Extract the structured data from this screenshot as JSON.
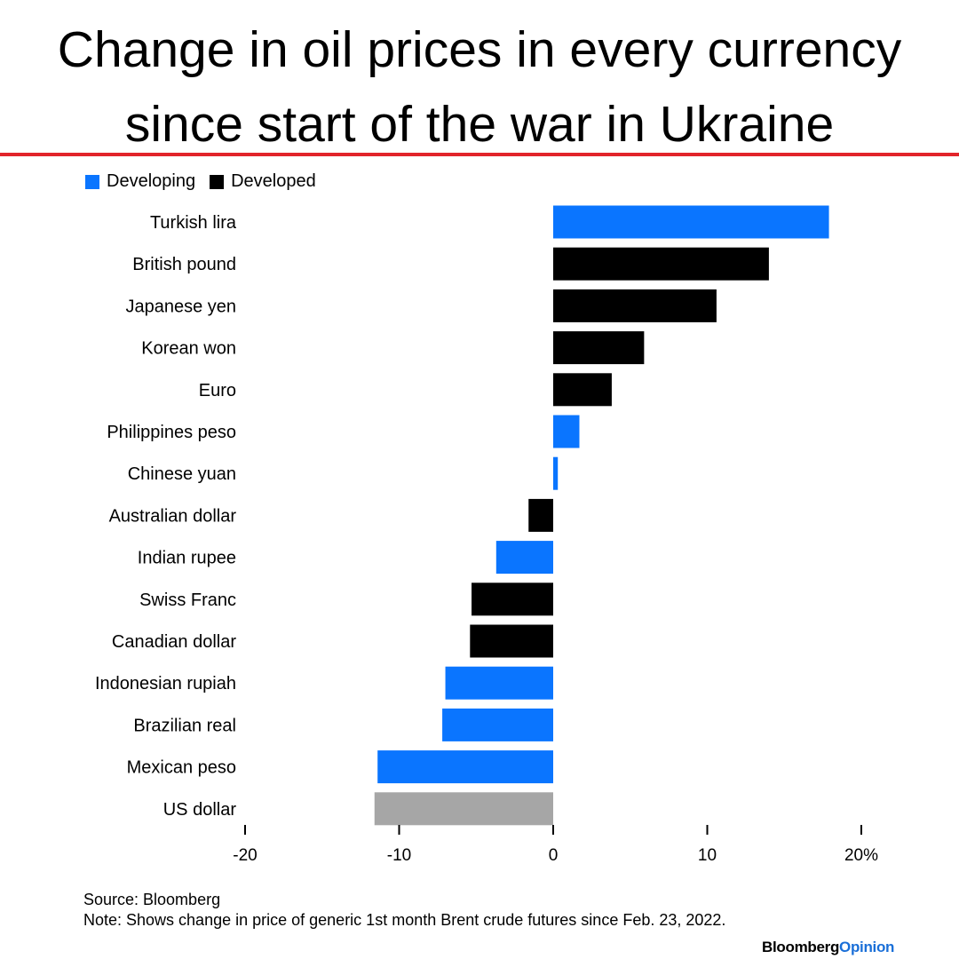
{
  "title_lines": [
    "Change in oil prices in every currency",
    "since start of the war in Ukraine"
  ],
  "legend": [
    {
      "label": "Developing",
      "color": "#0a75ff"
    },
    {
      "label": "Developed",
      "color": "#000000"
    }
  ],
  "colors": {
    "developing": "#0a75ff",
    "developed": "#000000",
    "usd": "#a6a6a6",
    "rule": "#e2242a",
    "brand_accent": "#1a6fd8"
  },
  "chart_data": {
    "type": "bar",
    "orientation": "horizontal",
    "categories": [
      "Turkish lira",
      "British pound",
      "Japanese yen",
      "Korean won",
      "Euro",
      "Philippines peso",
      "Chinese yuan",
      "Australian dollar",
      "Indian rupee",
      "Swiss Franc",
      "Canadian dollar",
      "Indonesian rupiah",
      "Brazilian real",
      "Mexican peso",
      "US dollar"
    ],
    "values": [
      17.9,
      14.0,
      10.6,
      5.9,
      3.8,
      1.7,
      0.3,
      -1.6,
      -3.7,
      -5.3,
      -5.4,
      -7.0,
      -7.2,
      -11.4,
      -11.6
    ],
    "groups": [
      "developing",
      "developed",
      "developed",
      "developed",
      "developed",
      "developing",
      "developing",
      "developed",
      "developing",
      "developed",
      "developed",
      "developing",
      "developing",
      "developing",
      "usd"
    ],
    "xlim": [
      -20,
      20
    ],
    "xticks": [
      -20,
      -10,
      0,
      10,
      20
    ],
    "xtick_labels": [
      "-20",
      "-10",
      "0",
      "10",
      "20%"
    ],
    "legend_position": "top-left",
    "grid": false
  },
  "footer": {
    "source": "Source: Bloomberg",
    "note": "Note: Shows change in price of generic 1st month Brent crude futures since Feb. 23, 2022."
  },
  "brand": {
    "part1": "Bloomberg",
    "part2": "Opinion"
  }
}
